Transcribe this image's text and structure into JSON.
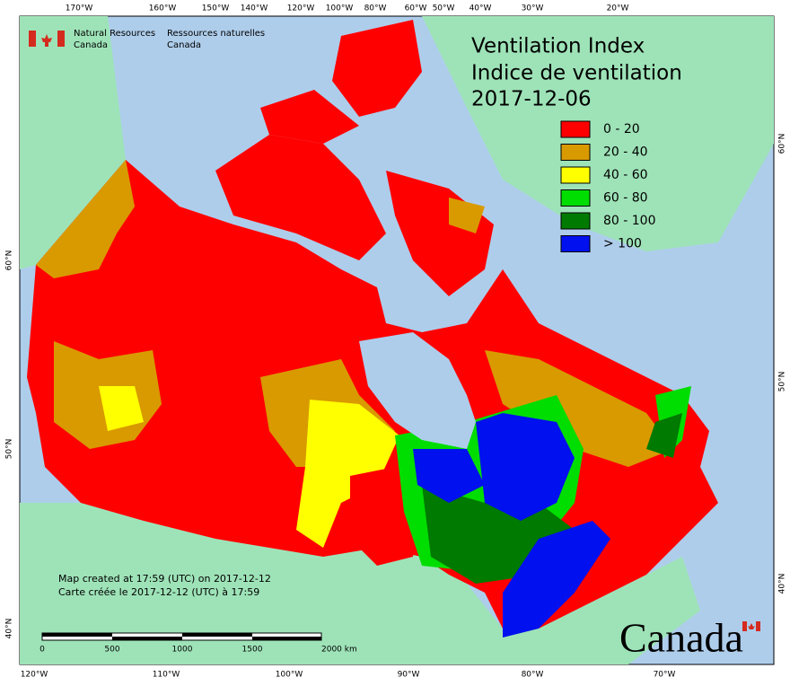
{
  "header": {
    "agency_en": [
      "Natural Resources",
      "Canada"
    ],
    "agency_fr": [
      "Ressources naturelles",
      "Canada"
    ]
  },
  "title": [
    "Ventilation Index",
    "Indice de ventilation",
    "2017-12-06"
  ],
  "legend": [
    {
      "label": "0 - 20",
      "color": "#ff0000"
    },
    {
      "label": "20 - 40",
      "color": "#d99a00"
    },
    {
      "label": "40 - 60",
      "color": "#ffff00"
    },
    {
      "label": "60 - 80",
      "color": "#00dd00"
    },
    {
      "label": "80 - 100",
      "color": "#007a00"
    },
    {
      "label": "> 100",
      "color": "#0010ee"
    }
  ],
  "notes": [
    "Map created at 17:59 (UTC) on 2017-12-12",
    "Carte créée le 2017-12-12 (UTC) à 17:59"
  ],
  "scale_bar": [
    "0",
    "500",
    "1000",
    "1500",
    "2000 km"
  ],
  "graticule": {
    "top": [
      "170°W",
      "160°W",
      "150°W",
      "140°W",
      "120°W",
      "100°W",
      "80°W",
      "60°W",
      "50°W",
      "40°W",
      "30°W",
      "20°W"
    ],
    "bottom": [
      "120°W",
      "110°W",
      "100°W",
      "90°W",
      "80°W",
      "70°W"
    ],
    "left": [
      "60°N",
      "50°N",
      "40°N"
    ],
    "right": [
      "60°N",
      "50°N",
      "40°N"
    ]
  },
  "wordmark": "Canada"
}
